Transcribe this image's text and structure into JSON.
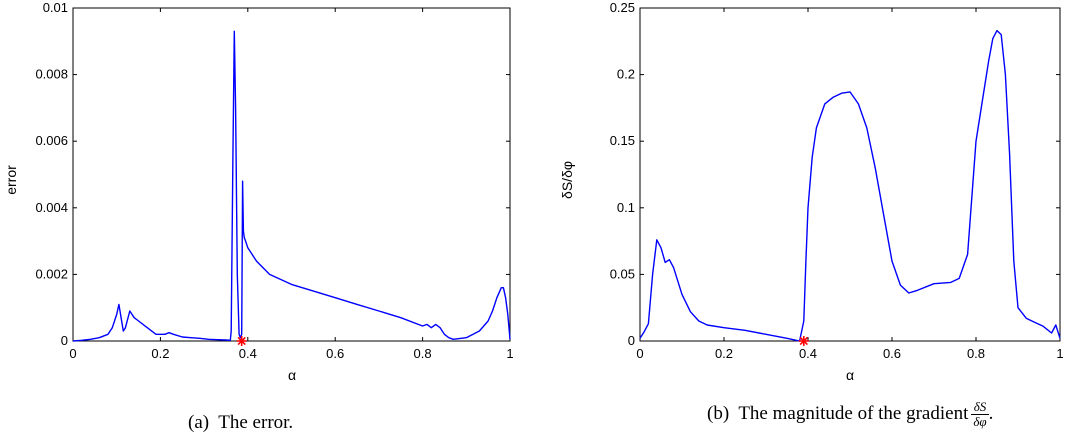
{
  "chart_data": [
    {
      "type": "line",
      "caption_label": "(a)",
      "caption_text": "The error.",
      "xlabel": "α",
      "ylabel": "error",
      "xlim": [
        0,
        1
      ],
      "ylim": [
        0,
        0.01
      ],
      "xticks": [
        "0",
        "0.2",
        "0.4",
        "0.6",
        "0.8",
        "1"
      ],
      "yticks": [
        "0",
        "0.002",
        "0.004",
        "0.006",
        "0.008",
        "0.01"
      ],
      "grid": false,
      "line_color": "#0000ff",
      "marker_color": "#ff0000",
      "marker": {
        "x": 0.386,
        "y": 0
      },
      "series": [
        {
          "x": [
            0,
            0.02,
            0.04,
            0.06,
            0.08,
            0.09,
            0.1,
            0.105,
            0.11,
            0.115,
            0.12,
            0.13,
            0.135,
            0.14,
            0.15,
            0.17,
            0.19,
            0.21,
            0.22,
            0.23,
            0.25,
            0.27,
            0.29,
            0.31,
            0.33,
            0.35,
            0.36,
            0.362,
            0.366,
            0.369,
            0.372,
            0.376,
            0.38,
            0.383,
            0.386,
            0.388,
            0.39,
            0.392,
            0.395,
            0.4,
            0.42,
            0.45,
            0.5,
            0.55,
            0.6,
            0.65,
            0.7,
            0.75,
            0.8,
            0.81,
            0.82,
            0.83,
            0.84,
            0.85,
            0.86,
            0.87,
            0.9,
            0.93,
            0.95,
            0.96,
            0.97,
            0.98,
            0.985,
            0.99,
            0.995,
            1.0
          ],
          "y": [
            0,
            2e-05,
            5e-05,
            0.0001,
            0.0002,
            0.0004,
            0.0008,
            0.0011,
            0.0007,
            0.0003,
            0.0004,
            0.0009,
            0.0008,
            0.0007,
            0.0006,
            0.0004,
            0.0002,
            0.0002,
            0.00025,
            0.0002,
            0.00012,
            0.0001,
            8e-05,
            5e-05,
            4e-05,
            3e-05,
            2e-05,
            0.0003,
            0.0055,
            0.0093,
            0.007,
            0.002,
            0.0002,
            0.0001,
            0.0002,
            0.0048,
            0.0033,
            0.0031,
            0.003,
            0.0028,
            0.0024,
            0.002,
            0.0017,
            0.0015,
            0.0013,
            0.0011,
            0.0009,
            0.0007,
            0.00045,
            0.0005,
            0.0004,
            0.0005,
            0.0004,
            0.0002,
            0.0001,
            5e-05,
            0.0001,
            0.0003,
            0.0006,
            0.0009,
            0.0013,
            0.0016,
            0.0016,
            0.0013,
            0.0008,
            5e-05
          ]
        }
      ]
    },
    {
      "type": "line",
      "caption_label": "(b)",
      "caption_text": "The magnitude of the gradient",
      "caption_frac_num": "δS",
      "caption_frac_den": "δφ",
      "caption_end": ".",
      "xlabel": "α",
      "ylabel": "δS/δφ",
      "xlim": [
        0,
        1
      ],
      "ylim": [
        0,
        0.25
      ],
      "xticks": [
        "0",
        "0.2",
        "0.4",
        "0.6",
        "0.8",
        "1"
      ],
      "yticks": [
        "0",
        "0.05",
        "0.1",
        "0.15",
        "0.2",
        "0.25"
      ],
      "grid": false,
      "line_color": "#0000ff",
      "marker_color": "#ff0000",
      "marker": {
        "x": 0.39,
        "y": 0
      },
      "series": [
        {
          "x": [
            0,
            0.01,
            0.02,
            0.03,
            0.04,
            0.05,
            0.06,
            0.07,
            0.08,
            0.09,
            0.1,
            0.12,
            0.14,
            0.16,
            0.2,
            0.25,
            0.3,
            0.35,
            0.38,
            0.39,
            0.395,
            0.4,
            0.41,
            0.42,
            0.44,
            0.46,
            0.48,
            0.5,
            0.52,
            0.54,
            0.56,
            0.58,
            0.6,
            0.62,
            0.64,
            0.66,
            0.7,
            0.74,
            0.76,
            0.78,
            0.8,
            0.82,
            0.83,
            0.84,
            0.85,
            0.86,
            0.87,
            0.88,
            0.89,
            0.9,
            0.92,
            0.94,
            0.96,
            0.98,
            0.99,
            1.0
          ],
          "y": [
            0.002,
            0.007,
            0.013,
            0.05,
            0.076,
            0.07,
            0.059,
            0.061,
            0.055,
            0.045,
            0.035,
            0.022,
            0.015,
            0.012,
            0.01,
            0.008,
            0.005,
            0.002,
            0.0,
            0.015,
            0.06,
            0.1,
            0.138,
            0.16,
            0.178,
            0.183,
            0.186,
            0.187,
            0.178,
            0.16,
            0.13,
            0.095,
            0.06,
            0.042,
            0.036,
            0.038,
            0.043,
            0.044,
            0.047,
            0.065,
            0.15,
            0.19,
            0.21,
            0.227,
            0.233,
            0.23,
            0.2,
            0.14,
            0.06,
            0.025,
            0.017,
            0.014,
            0.011,
            0.006,
            0.012,
            0.002
          ]
        }
      ]
    }
  ]
}
